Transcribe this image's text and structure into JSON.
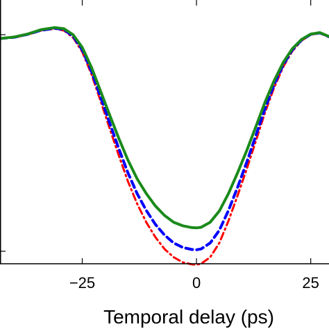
{
  "chart_data": {
    "type": "line",
    "title": "",
    "xlabel": "Temporal delay (ps)",
    "ylabel": "",
    "xlim": [
      -43,
      29
    ],
    "ylim": [
      0.24,
      1.13
    ],
    "xticks": [
      -25,
      0,
      25
    ],
    "xtick_labels": [
      "−25",
      "0",
      "25"
    ],
    "grid": false,
    "series": [
      {
        "color": "#ff0000",
        "style": "dash-dot",
        "x": [
          -43,
          -40,
          -37,
          -34,
          -31,
          -29,
          -27,
          -25,
          -23,
          -21,
          -19,
          -17,
          -15,
          -13,
          -11,
          -9,
          -7,
          -5,
          -3,
          -1,
          0,
          1,
          3,
          5,
          7,
          9,
          11,
          13,
          15,
          17,
          19,
          21,
          23,
          25,
          27,
          29
        ],
        "y": [
          1.0,
          1.003,
          1.013,
          1.027,
          1.033,
          1.027,
          1.003,
          0.955,
          0.88,
          0.79,
          0.697,
          0.605,
          0.518,
          0.443,
          0.38,
          0.33,
          0.29,
          0.262,
          0.245,
          0.238,
          0.237,
          0.24,
          0.262,
          0.31,
          0.385,
          0.47,
          0.56,
          0.655,
          0.75,
          0.835,
          0.905,
          0.958,
          0.993,
          1.013,
          1.018,
          1.005
        ]
      },
      {
        "color": "#0000ff",
        "style": "dashed",
        "x": [
          -43,
          -40,
          -37,
          -34,
          -31,
          -29,
          -27,
          -25,
          -23,
          -21,
          -19,
          -17,
          -15,
          -13,
          -11,
          -9,
          -7,
          -5,
          -3,
          -1,
          0,
          1,
          3,
          5,
          7,
          9,
          11,
          13,
          15,
          17,
          19,
          21,
          23,
          25,
          27,
          29
        ],
        "y": [
          1.0,
          1.004,
          1.014,
          1.028,
          1.035,
          1.03,
          1.008,
          0.962,
          0.89,
          0.803,
          0.715,
          0.628,
          0.547,
          0.477,
          0.42,
          0.373,
          0.337,
          0.31,
          0.295,
          0.288,
          0.287,
          0.29,
          0.31,
          0.353,
          0.42,
          0.498,
          0.583,
          0.673,
          0.763,
          0.845,
          0.912,
          0.962,
          0.995,
          1.014,
          1.019,
          1.006
        ]
      },
      {
        "color": "#1a8a1a",
        "style": "solid",
        "x": [
          -43,
          -40,
          -37,
          -34,
          -31,
          -29,
          -27,
          -25,
          -23,
          -21,
          -19,
          -17,
          -15,
          -13,
          -11,
          -9,
          -7,
          -5,
          -3,
          -1,
          0,
          1,
          3,
          5,
          7,
          9,
          11,
          13,
          15,
          17,
          19,
          21,
          23,
          25,
          27,
          29
        ],
        "y": [
          1.0,
          1.005,
          1.015,
          1.03,
          1.037,
          1.033,
          1.013,
          0.97,
          0.903,
          0.823,
          0.742,
          0.663,
          0.59,
          0.527,
          0.477,
          0.435,
          0.403,
          0.38,
          0.368,
          0.362,
          0.361,
          0.363,
          0.38,
          0.418,
          0.477,
          0.547,
          0.622,
          0.703,
          0.785,
          0.858,
          0.92,
          0.966,
          0.997,
          1.015,
          1.02,
          1.007
        ]
      }
    ]
  }
}
